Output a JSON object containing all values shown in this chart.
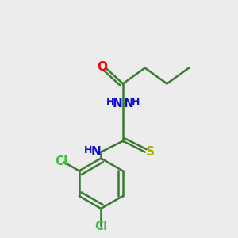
{
  "background_color": "#ececec",
  "bond_color": "#3a7a32",
  "bond_width": 1.8,
  "figsize": [
    3.0,
    3.0
  ],
  "dpi": 100,
  "colors": {
    "O": "#ff0000",
    "N": "#1010cc",
    "S": "#aaaa00",
    "Cl": "#44bb44",
    "C": "#3a7a32",
    "H": "#1010cc"
  }
}
